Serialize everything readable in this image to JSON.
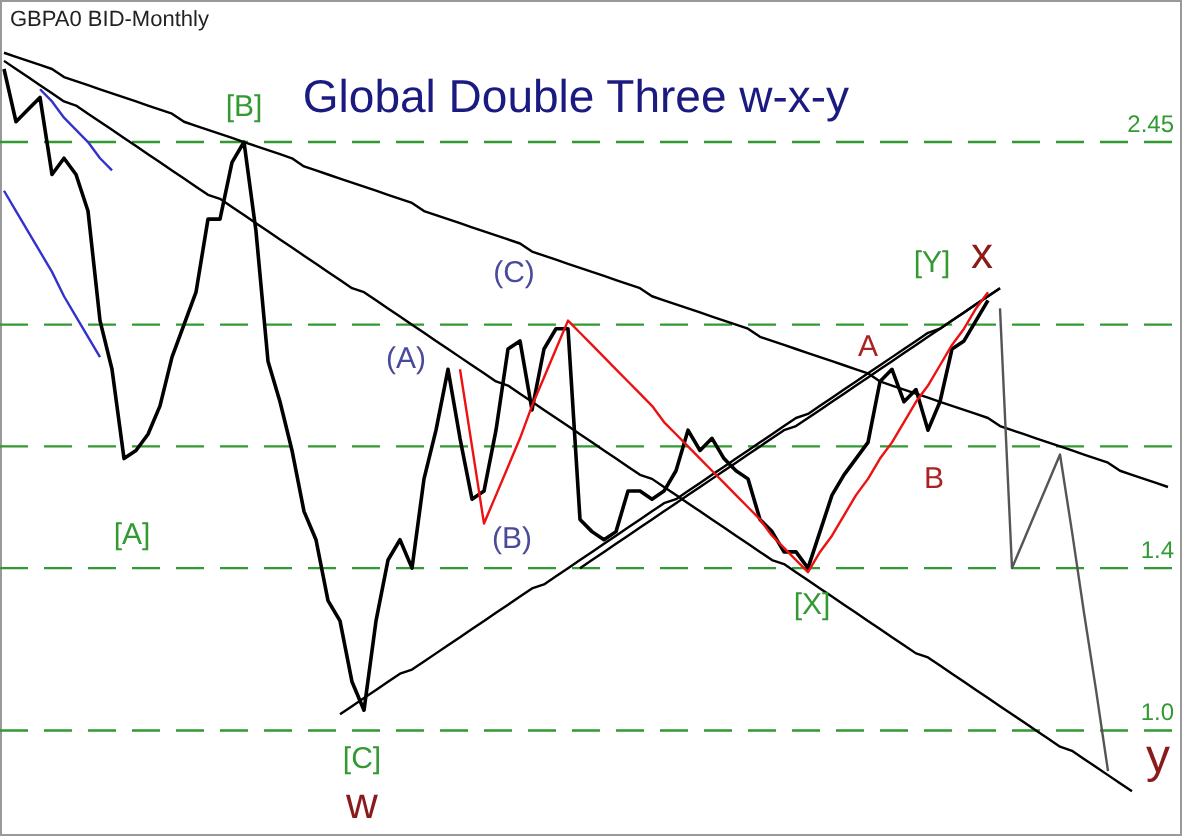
{
  "chart_data": {
    "type": "line",
    "title": "Global Double Three  w-x-y",
    "subtitle": "GBPA0 BID-Monthly",
    "categories": [
      null,
      null,
      null,
      null,
      null,
      null,
      null,
      null,
      null,
      null,
      null,
      null,
      null,
      null,
      null,
      null,
      null,
      null,
      null,
      null,
      null,
      null,
      null,
      null,
      null,
      null,
      null,
      null,
      null,
      null,
      null,
      null,
      null,
      null,
      null,
      null,
      null,
      null,
      null,
      null,
      null,
      null,
      null,
      null,
      null,
      null,
      null,
      null,
      null,
      null,
      null,
      null,
      null,
      null,
      null,
      null,
      null,
      null,
      null,
      null,
      null,
      null,
      null,
      null,
      null,
      null,
      null,
      null,
      null,
      null,
      null,
      null,
      null,
      null,
      null,
      null,
      null,
      null,
      null,
      null,
      null,
      null,
      null,
      null,
      null,
      null,
      null,
      null,
      null,
      null,
      null,
      null,
      null,
      null,
      null,
      null,
      null,
      null,
      null
    ],
    "series": [
      {
        "color": "#000000",
        "values": [
          2.63,
          2.5,
          2.53,
          2.56,
          2.37,
          2.41,
          2.37,
          2.28,
          2.01,
          1.89,
          1.67,
          1.69,
          1.73,
          1.8,
          1.92,
          2.0,
          2.08,
          2.26,
          2.26,
          2.4,
          2.45,
          2.23,
          1.91,
          1.81,
          1.69,
          1.54,
          1.47,
          1.32,
          1.27,
          1.12,
          1.05,
          1.27,
          1.42,
          1.47,
          1.4,
          1.62,
          1.74,
          1.89,
          1.72,
          1.57,
          1.59,
          1.74,
          1.94,
          1.96,
          1.79,
          1.94,
          1.99,
          1.99,
          1.52,
          1.49,
          1.47,
          1.49,
          1.59,
          1.59,
          1.57,
          1.59,
          1.64,
          1.74,
          1.69,
          1.72,
          1.67,
          1.64,
          1.62,
          1.52,
          1.49,
          1.44,
          1.44,
          1.4,
          1.49,
          1.58,
          1.63,
          1.67,
          1.71,
          1.86,
          1.89,
          1.81,
          1.84,
          1.74,
          1.81,
          1.94,
          1.96,
          2.01,
          2.06,
          null,
          null,
          null,
          null,
          null,
          null,
          null,
          null,
          null,
          null,
          null,
          null,
          null,
          null,
          null,
          null
        ]
      },
      {
        "color": "#000000",
        "values": [
          2.67,
          2.66,
          2.65,
          2.64,
          2.63,
          2.61,
          2.6,
          2.59,
          2.58,
          2.57,
          2.56,
          2.55,
          2.54,
          2.53,
          2.52,
          2.5,
          2.49,
          2.48,
          2.47,
          2.46,
          2.45,
          2.44,
          2.43,
          2.42,
          2.41,
          2.39,
          2.38,
          2.37,
          2.36,
          2.35,
          2.34,
          2.33,
          2.32,
          2.31,
          2.3,
          2.28,
          2.27,
          2.26,
          2.25,
          2.24,
          2.23,
          2.22,
          2.21,
          2.2,
          2.18,
          2.17,
          2.16,
          2.15,
          2.14,
          2.13,
          2.12,
          2.11,
          2.1,
          2.09,
          2.07,
          2.06,
          2.05,
          2.04,
          2.03,
          2.02,
          2.01,
          2.0,
          1.99,
          1.97,
          1.96,
          1.95,
          1.94,
          1.93,
          1.92,
          1.91,
          1.9,
          1.89,
          1.88,
          1.86,
          1.85,
          1.84,
          1.83,
          1.82,
          1.81,
          1.8,
          1.79,
          1.78,
          1.77,
          1.75,
          1.74,
          1.73,
          1.72,
          1.71,
          1.7,
          1.69,
          1.68,
          1.67,
          1.66,
          1.64,
          1.63,
          1.62,
          1.61,
          1.6,
          null
        ]
      },
      {
        "color": "#000000",
        "values": [
          2.65,
          2.63,
          2.61,
          2.59,
          2.57,
          2.55,
          2.54,
          2.52,
          2.5,
          2.48,
          2.46,
          2.44,
          2.42,
          2.4,
          2.38,
          2.36,
          2.34,
          2.32,
          2.31,
          2.29,
          2.27,
          2.25,
          2.23,
          2.21,
          2.19,
          2.17,
          2.15,
          2.13,
          2.11,
          2.09,
          2.08,
          2.06,
          2.04,
          2.02,
          2.0,
          1.98,
          1.96,
          1.94,
          1.92,
          1.9,
          1.88,
          1.86,
          1.85,
          1.83,
          1.81,
          1.79,
          1.77,
          1.75,
          1.73,
          1.71,
          1.69,
          1.67,
          1.65,
          1.63,
          1.62,
          1.6,
          1.58,
          1.56,
          1.54,
          1.52,
          1.5,
          1.48,
          1.46,
          1.44,
          1.42,
          1.41,
          1.39,
          1.37,
          1.35,
          1.33,
          1.31,
          1.29,
          1.27,
          1.25,
          1.23,
          1.21,
          1.19,
          1.18,
          1.16,
          1.14,
          1.12,
          1.1,
          1.08,
          1.06,
          1.04,
          1.02,
          1.0,
          0.98,
          0.96,
          0.95,
          0.93,
          0.91,
          0.89,
          0.87,
          0.85,
          null,
          null,
          null,
          null
        ]
      },
      {
        "color": "#000000",
        "values": [
          null,
          null,
          null,
          null,
          null,
          null,
          null,
          null,
          null,
          null,
          null,
          null,
          null,
          null,
          null,
          null,
          null,
          null,
          null,
          null,
          null,
          null,
          null,
          null,
          null,
          null,
          null,
          null,
          1.04,
          1.06,
          1.08,
          1.1,
          1.12,
          1.14,
          1.15,
          1.17,
          1.19,
          1.21,
          1.23,
          1.25,
          1.27,
          1.29,
          1.31,
          1.33,
          1.35,
          1.36,
          1.38,
          1.4,
          1.42,
          1.44,
          1.46,
          1.48,
          1.5,
          1.52,
          1.54,
          1.56,
          1.57,
          1.59,
          1.61,
          1.63,
          1.65,
          1.67,
          1.69,
          1.71,
          1.73,
          1.75,
          1.77,
          1.78,
          1.8,
          1.82,
          1.84,
          1.86,
          1.88,
          1.9,
          1.92,
          1.94,
          1.96,
          1.98,
          1.99,
          2.01,
          2.03,
          2.05,
          2.07,
          2.09,
          null,
          null,
          null,
          null,
          null,
          null,
          null,
          null,
          null,
          null,
          null,
          null,
          null,
          null,
          null
        ]
      },
      {
        "color": "#000000",
        "values": [
          null,
          null,
          null,
          null,
          null,
          null,
          null,
          null,
          null,
          null,
          null,
          null,
          null,
          null,
          null,
          null,
          null,
          null,
          null,
          null,
          null,
          null,
          null,
          null,
          null,
          null,
          null,
          null,
          null,
          null,
          null,
          null,
          null,
          null,
          null,
          null,
          null,
          null,
          null,
          null,
          null,
          null,
          null,
          null,
          null,
          null,
          null,
          null,
          1.4,
          1.42,
          1.44,
          1.46,
          1.48,
          1.5,
          1.52,
          1.54,
          1.56,
          1.58,
          1.6,
          1.62,
          1.64,
          1.66,
          1.68,
          1.7,
          1.72,
          1.74,
          1.75,
          1.77,
          1.79,
          1.81,
          1.83,
          1.85,
          1.87,
          1.89,
          1.91,
          1.93,
          1.95,
          1.97,
          1.99,
          2.01,
          2.03,
          2.05,
          2.07,
          2.09,
          null,
          null,
          null,
          null,
          null,
          null,
          null,
          null,
          null,
          null,
          null,
          null,
          null,
          null,
          null
        ]
      },
      {
        "color": "#3333cc",
        "values": [
          null,
          null,
          null,
          2.58,
          2.55,
          2.51,
          2.48,
          2.45,
          2.41,
          2.38,
          null,
          null,
          null,
          null,
          null,
          null,
          null,
          null,
          null,
          null,
          null,
          null,
          null,
          null,
          null,
          null,
          null,
          null,
          null,
          null,
          null,
          null,
          null,
          null,
          null,
          null,
          null,
          null,
          null,
          null,
          null,
          null,
          null,
          null,
          null,
          null,
          null,
          null,
          null,
          null,
          null,
          null,
          null,
          null,
          null,
          null,
          null,
          null,
          null,
          null,
          null,
          null,
          null,
          null,
          null,
          null,
          null,
          null,
          null,
          null,
          null,
          null,
          null,
          null,
          null,
          null,
          null,
          null,
          null,
          null,
          null,
          null,
          null,
          null,
          null,
          null,
          null,
          null,
          null,
          null,
          null,
          null,
          null,
          null,
          null,
          null,
          null,
          null,
          null
        ]
      },
      {
        "color": "#3333cc",
        "values": [
          2.33,
          2.28,
          2.23,
          2.18,
          2.13,
          2.07,
          2.02,
          1.97,
          1.92,
          null,
          null,
          null,
          null,
          null,
          null,
          null,
          null,
          null,
          null,
          null,
          null,
          null,
          null,
          null,
          null,
          null,
          null,
          null,
          null,
          null,
          null,
          null,
          null,
          null,
          null,
          null,
          null,
          null,
          null,
          null,
          null,
          null,
          null,
          null,
          null,
          null,
          null,
          null,
          null,
          null,
          null,
          null,
          null,
          null,
          null,
          null,
          null,
          null,
          null,
          null,
          null,
          null,
          null,
          null,
          null,
          null,
          null,
          null,
          null,
          null,
          null,
          null,
          null,
          null,
          null,
          null,
          null,
          null,
          null,
          null,
          null,
          null,
          null,
          null,
          null,
          null,
          null,
          null,
          null,
          null,
          null,
          null,
          null,
          null,
          null,
          null,
          null,
          null,
          null
        ]
      },
      {
        "color": "#ee1111",
        "values": [
          null,
          null,
          null,
          null,
          null,
          null,
          null,
          null,
          null,
          null,
          null,
          null,
          null,
          null,
          null,
          null,
          null,
          null,
          null,
          null,
          null,
          null,
          null,
          null,
          null,
          null,
          null,
          null,
          null,
          null,
          null,
          null,
          null,
          null,
          null,
          null,
          null,
          null,
          1.89,
          1.7,
          1.51,
          1.58,
          1.65,
          1.72,
          1.8,
          1.87,
          1.94,
          2.01,
          1.98,
          1.95,
          1.92,
          1.89,
          1.86,
          1.83,
          1.8,
          1.76,
          1.73,
          1.7,
          1.67,
          1.64,
          1.61,
          1.58,
          1.55,
          1.52,
          1.48,
          1.45,
          1.42,
          1.39,
          1.44,
          1.48,
          1.53,
          1.58,
          1.62,
          1.67,
          1.71,
          1.76,
          1.81,
          1.85,
          1.9,
          1.95,
          1.99,
          2.04,
          2.08,
          null,
          null,
          null,
          null,
          null,
          null,
          null,
          null,
          null,
          null,
          null,
          null,
          null,
          null,
          null,
          null
        ]
      },
      {
        "color": "#555555",
        "values": [
          null,
          null,
          null,
          null,
          null,
          null,
          null,
          null,
          null,
          null,
          null,
          null,
          null,
          null,
          null,
          null,
          null,
          null,
          null,
          null,
          null,
          null,
          null,
          null,
          null,
          null,
          null,
          null,
          null,
          null,
          null,
          null,
          null,
          null,
          null,
          null,
          null,
          null,
          null,
          null,
          null,
          null,
          null,
          null,
          null,
          null,
          null,
          null,
          null,
          null,
          null,
          null,
          null,
          null,
          null,
          null,
          null,
          null,
          null,
          null,
          null,
          null,
          null,
          null,
          null,
          null,
          null,
          null,
          null,
          null,
          null,
          null,
          null,
          null,
          null,
          null,
          null,
          null,
          null,
          null,
          null,
          null,
          null,
          2.04,
          1.4,
          1.47,
          1.54,
          1.61,
          1.68,
          1.49,
          1.29,
          1.1,
          0.9,
          null,
          null,
          null,
          null,
          null,
          null
        ]
      }
    ],
    "ylim": [
      0.74,
      2.8
    ],
    "yticks": [
      2.45,
      1.4,
      {
        "value": 1.0,
        "label": "1.0"
      }
    ],
    "ref_lines": [
      {
        "axis": "y",
        "value": 2.45,
        "color": "#339933",
        "line_style": "dashed"
      },
      {
        "axis": "y",
        "value": 2.0,
        "color": "#339933",
        "line_style": "dashed"
      },
      {
        "axis": "y",
        "value": 1.7,
        "color": "#339933",
        "line_style": "dashed"
      },
      {
        "axis": "y",
        "value": 1.4,
        "color": "#339933",
        "line_style": "dashed"
      },
      {
        "axis": "y",
        "value": 1.0,
        "color": "#339933",
        "line_style": "dashed"
      }
    ],
    "annotations": [
      "[B]",
      "[A]",
      "[C]",
      "w",
      "(A)",
      "(B)",
      "(C)",
      "[X]",
      "[Y]",
      "x",
      "A",
      "B",
      "y"
    ],
    "tick_labels": "y",
    "grid": false,
    "marker": "none",
    "line_style": "solid"
  }
}
